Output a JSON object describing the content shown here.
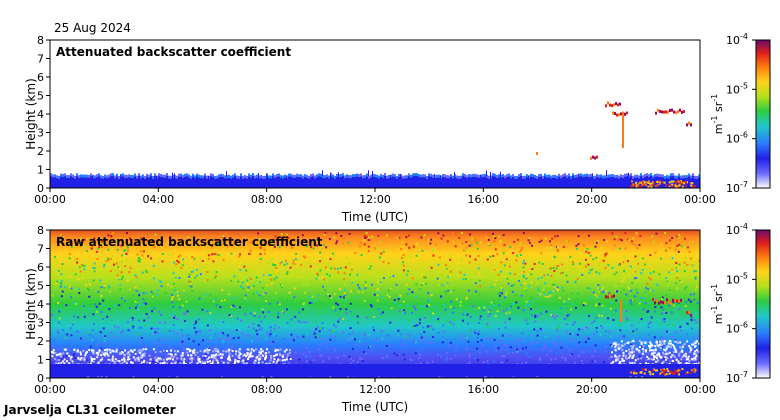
{
  "date_label": "25 Aug 2024",
  "footer_label": "Jarvselja CL31 ceilometer",
  "colorbar": {
    "ticks": [
      {
        "base": "10",
        "exp": "-4",
        "value": 0.0001
      },
      {
        "base": "10",
        "exp": "-5",
        "value": 1e-05
      },
      {
        "base": "10",
        "exp": "-6",
        "value": 1e-06
      },
      {
        "base": "10",
        "exp": "-7",
        "value": 1e-07
      }
    ],
    "unit": {
      "m": "m",
      "m_exp": "-1",
      "sr": "sr",
      "sr_exp": "-1"
    },
    "colors": [
      "#ffffff",
      "#6a6aff",
      "#2020e6",
      "#2a7cff",
      "#21c8c8",
      "#2ecc40",
      "#b8e01c",
      "#ffd21a",
      "#ff7a10",
      "#e0201a",
      "#9a0a5a",
      "#6a0a6a"
    ]
  },
  "chart_data": [
    {
      "type": "heatmap",
      "title": "Attenuated backscatter coefficient",
      "xlabel": "Time (UTC)",
      "ylabel": "Height (km)",
      "xlim": [
        "00:00",
        "00:00"
      ],
      "x_ticks": [
        "00:00",
        "04:00",
        "08:00",
        "12:00",
        "16:00",
        "20:00",
        "00:00"
      ],
      "ylim": [
        0,
        8
      ],
      "y_ticks": [
        "0",
        "1",
        "2",
        "3",
        "4",
        "5",
        "6",
        "7",
        "8"
      ],
      "color_scale": "log",
      "color_range": [
        1e-07,
        0.0001
      ],
      "features": {
        "boundary_layer_top_km": 0.6,
        "elevated_cloud_times": [
          "20:30",
          "22:00"
        ],
        "elevated_cloud_height_km": [
          4.0,
          4.6
        ]
      }
    },
    {
      "type": "heatmap",
      "title": "Raw attenuated backscatter coefficient",
      "xlabel": "Time (UTC)",
      "ylabel": "Height (km)",
      "xlim": [
        "00:00",
        "00:00"
      ],
      "x_ticks": [
        "00:00",
        "04:00",
        "08:00",
        "12:00",
        "16:00",
        "20:00",
        "00:00"
      ],
      "ylim": [
        0,
        8
      ],
      "y_ticks": [
        "0",
        "1",
        "2",
        "3",
        "4",
        "5",
        "6",
        "7",
        "8"
      ],
      "color_scale": "log",
      "color_range": [
        1e-07,
        0.0001
      ]
    }
  ]
}
